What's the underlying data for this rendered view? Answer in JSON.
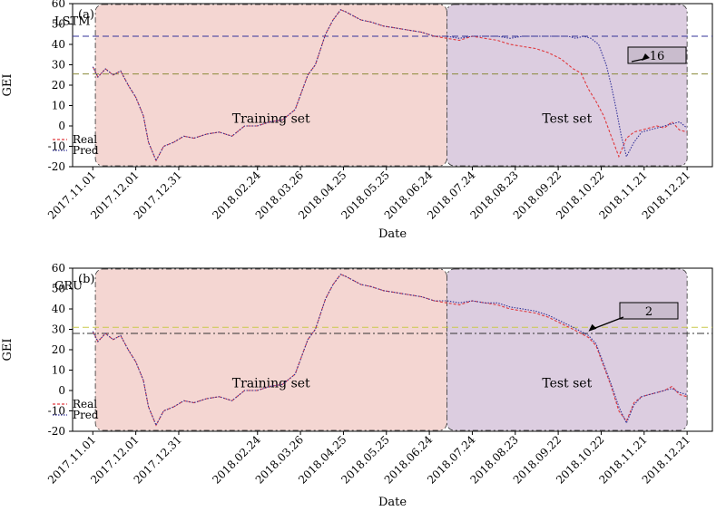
{
  "chart_data": [
    {
      "type": "line",
      "panel_label": "(a)",
      "model_label": "LSTM",
      "xlabel": "Date",
      "ylabel": "GEI",
      "ylim": [
        -20,
        60
      ],
      "yticks": [
        -20,
        -10,
        0,
        10,
        20,
        30,
        40,
        50,
        60
      ],
      "x_tick_labels": [
        "2017.11.01",
        "2017.12.01",
        "2017.12.31",
        "2018.02.24",
        "2018.03.26",
        "2018.04.25",
        "2018.05.25",
        "2018.06.24",
        "2018.07.24",
        "2018.08.23",
        "2018.09.22",
        "2018.10.22",
        "2018.11.21",
        "2018.12.21"
      ],
      "regions": [
        {
          "label": "Training set",
          "color": "#f4d6d2",
          "start": 1,
          "end": 140
        },
        {
          "label": "Test set",
          "color": "#dccde0",
          "start": 140,
          "end": 235
        }
      ],
      "legend": {
        "position": "lower-left",
        "entries": [
          "Real",
          "Pred"
        ]
      },
      "reference_lines": [
        {
          "y": 44,
          "style": "dashed",
          "color": "#333399"
        },
        {
          "y": 25.5,
          "style": "dashed",
          "color": "#8a8a3a"
        }
      ],
      "annotation": {
        "text": "16",
        "x": 217,
        "y": 32
      },
      "series": [
        {
          "name": "Real",
          "color": "#e0393e",
          "style": "dashed",
          "x": [
            0,
            2,
            5,
            8,
            11,
            14,
            17,
            20,
            22,
            25,
            28,
            32,
            36,
            40,
            45,
            50,
            55,
            60,
            65,
            70,
            75,
            80,
            85,
            88,
            92,
            95,
            98,
            100,
            103,
            106,
            110,
            115,
            120,
            125,
            130,
            135,
            140,
            145,
            150,
            155,
            160,
            165,
            170,
            175,
            180,
            185,
            190,
            193,
            196,
            199,
            202,
            205,
            208,
            211,
            214,
            217,
            220,
            223,
            226,
            229,
            232,
            235
          ],
          "y": [
            29,
            24,
            28,
            25,
            27,
            20,
            14,
            5,
            -8,
            -17,
            -10,
            -8,
            -5,
            -6,
            -4,
            -3,
            -5,
            0,
            0,
            2,
            3,
            8,
            25,
            30,
            45,
            52,
            57,
            56,
            54,
            52,
            51,
            49,
            48,
            47,
            46,
            44,
            43,
            42,
            44,
            43,
            42,
            40,
            39,
            38,
            36,
            33,
            28,
            26,
            18,
            12,
            5,
            -5,
            -15,
            -6,
            -3,
            -2,
            -1,
            0,
            -1,
            2,
            -2,
            -3
          ]
        },
        {
          "name": "Pred",
          "color": "#333399",
          "style": "dotted",
          "x": [
            0,
            2,
            5,
            8,
            11,
            14,
            17,
            20,
            22,
            25,
            28,
            32,
            36,
            40,
            45,
            50,
            55,
            60,
            65,
            70,
            75,
            80,
            85,
            88,
            92,
            95,
            98,
            100,
            103,
            106,
            110,
            115,
            120,
            125,
            130,
            135,
            140,
            145,
            150,
            155,
            160,
            165,
            170,
            175,
            180,
            185,
            188,
            191,
            194,
            197,
            200,
            203,
            205,
            207,
            209,
            211,
            214,
            217,
            220,
            223,
            226,
            229,
            232,
            235
          ],
          "y": [
            29,
            24,
            28,
            25,
            27,
            20,
            14,
            5,
            -8,
            -17,
            -10,
            -8,
            -5,
            -6,
            -4,
            -3,
            -5,
            0,
            0,
            2,
            3,
            8,
            25,
            30,
            45,
            52,
            57,
            56,
            54,
            52,
            51,
            49,
            48,
            47,
            46,
            44,
            44,
            43,
            44,
            44,
            44,
            43,
            44,
            44,
            44,
            44,
            44,
            43,
            44,
            43,
            40,
            30,
            20,
            8,
            -5,
            -15,
            -8,
            -3,
            -2,
            -1,
            0,
            1,
            2,
            -1
          ]
        }
      ]
    },
    {
      "type": "line",
      "panel_label": "(b)",
      "model_label": "GRU",
      "xlabel": "Date",
      "ylabel": "GEI",
      "ylim": [
        -20,
        60
      ],
      "yticks": [
        -20,
        -10,
        0,
        10,
        20,
        30,
        40,
        50,
        60
      ],
      "x_tick_labels": [
        "2017.11.01",
        "2017.12.01",
        "2017.12.31",
        "2018.02.24",
        "2018.03.26",
        "2018.04.25",
        "2018.05.25",
        "2018.06.24",
        "2018.07.24",
        "2018.08.23",
        "2018.09.22",
        "2018.10.22",
        "2018.11.21",
        "2018.12.21"
      ],
      "regions": [
        {
          "label": "Training set",
          "color": "#f4d6d2",
          "start": 1,
          "end": 140
        },
        {
          "label": "Test set",
          "color": "#dccde0",
          "start": 140,
          "end": 235
        }
      ],
      "legend": {
        "position": "lower-left",
        "entries": [
          "Real",
          "Pred"
        ]
      },
      "reference_lines": [
        {
          "y": 28,
          "style": "dashdot",
          "color": "#333333"
        },
        {
          "y": 31,
          "style": "dashed",
          "color": "#c9c94a"
        }
      ],
      "annotation": {
        "text": "2",
        "x": 196,
        "y": 29
      },
      "series": [
        {
          "name": "Real",
          "color": "#e0393e",
          "style": "dashed",
          "x": [
            0,
            2,
            5,
            8,
            11,
            14,
            17,
            20,
            22,
            25,
            28,
            32,
            36,
            40,
            45,
            50,
            55,
            60,
            65,
            70,
            75,
            80,
            85,
            88,
            92,
            95,
            98,
            100,
            103,
            106,
            110,
            115,
            120,
            125,
            130,
            135,
            140,
            145,
            150,
            155,
            160,
            165,
            170,
            175,
            180,
            185,
            190,
            193,
            196,
            199,
            202,
            205,
            208,
            211,
            214,
            217,
            220,
            223,
            226,
            229,
            232,
            235
          ],
          "y": [
            29,
            24,
            28,
            25,
            27,
            20,
            14,
            5,
            -8,
            -17,
            -10,
            -8,
            -5,
            -6,
            -4,
            -3,
            -5,
            0,
            0,
            2,
            3,
            8,
            25,
            30,
            45,
            52,
            57,
            56,
            54,
            52,
            51,
            49,
            48,
            47,
            46,
            44,
            43,
            42,
            44,
            43,
            42,
            40,
            39,
            38,
            36,
            33,
            30,
            28,
            26,
            22,
            12,
            2,
            -10,
            -15,
            -6,
            -3,
            -2,
            -1,
            0,
            2,
            -2,
            -3
          ]
        },
        {
          "name": "Pred",
          "color": "#333399",
          "style": "dotted",
          "x": [
            0,
            2,
            5,
            8,
            11,
            14,
            17,
            20,
            22,
            25,
            28,
            32,
            36,
            40,
            45,
            50,
            55,
            60,
            65,
            70,
            75,
            80,
            85,
            88,
            92,
            95,
            98,
            100,
            103,
            106,
            110,
            115,
            120,
            125,
            130,
            135,
            140,
            145,
            150,
            155,
            160,
            165,
            170,
            175,
            180,
            185,
            190,
            193,
            196,
            199,
            202,
            205,
            208,
            211,
            214,
            217,
            220,
            223,
            226,
            229,
            232,
            235
          ],
          "y": [
            29,
            24,
            28,
            25,
            27,
            20,
            14,
            5,
            -8,
            -17,
            -10,
            -8,
            -5,
            -6,
            -4,
            -3,
            -5,
            0,
            0,
            2,
            3,
            8,
            25,
            30,
            45,
            52,
            57,
            56,
            54,
            52,
            51,
            49,
            48,
            47,
            46,
            44,
            44,
            43,
            44,
            43,
            43,
            41,
            40,
            39,
            37,
            34,
            31,
            29,
            27,
            23,
            13,
            3,
            -8,
            -16,
            -7,
            -3,
            -2,
            -1,
            0,
            1,
            -1,
            -2
          ]
        }
      ]
    }
  ]
}
